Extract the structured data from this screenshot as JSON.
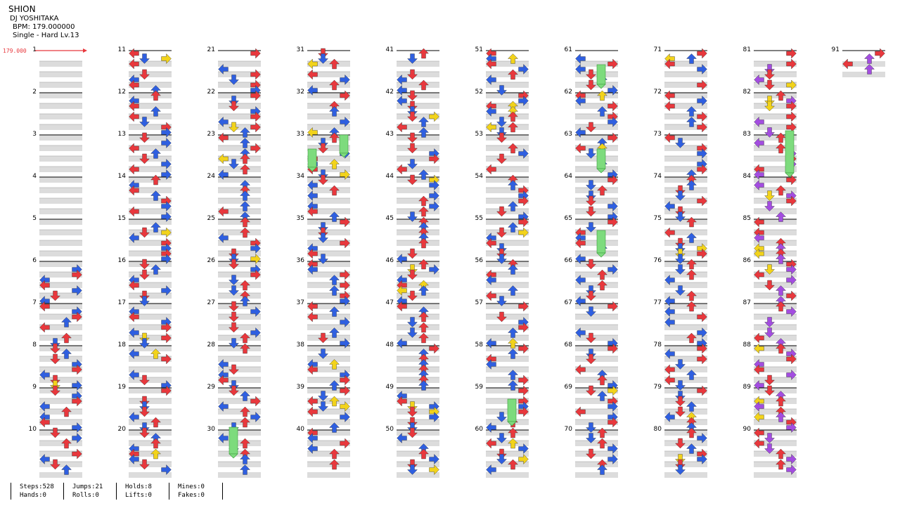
{
  "song": {
    "title": "SHION",
    "artist": "DJ YOSHITAKA",
    "bpm_label": "BPM: 179.000000",
    "difficulty": "Single - Hard  Lv.13"
  },
  "bpm_marker": "179.000",
  "colors": {
    "red": "#e8383d",
    "blue": "#2f5fe0",
    "yellow": "#f2d31b",
    "purple": "#a34de0",
    "hold_green": "#7ddb7d",
    "measure_band": "#dcdcdc"
  },
  "layout_info": {
    "total_measures": 91,
    "measures_per_column": 10,
    "column_count": 10
  },
  "column_sets": {
    "main_columns": [
      0,
      1,
      2,
      3,
      4,
      5,
      6,
      7,
      8,
      9
    ]
  },
  "measure_numbers": [
    "1",
    "2",
    "3",
    "4",
    "5",
    "6",
    "7",
    "8",
    "9",
    "10",
    "11",
    "12",
    "13",
    "14",
    "15",
    "16",
    "17",
    "18",
    "19",
    "20",
    "21",
    "22",
    "23",
    "24",
    "25",
    "26",
    "27",
    "28",
    "29",
    "30",
    "31",
    "32",
    "33",
    "34",
    "35",
    "36",
    "37",
    "38",
    "39",
    "40",
    "41",
    "42",
    "43",
    "44",
    "45",
    "46",
    "47",
    "48",
    "49",
    "50",
    "51",
    "52",
    "53",
    "54",
    "55",
    "56",
    "57",
    "58",
    "59",
    "60",
    "61",
    "62",
    "63",
    "64",
    "65",
    "66",
    "67",
    "68",
    "69",
    "70",
    "71",
    "72",
    "73",
    "74",
    "75",
    "76",
    "77",
    "78",
    "79",
    "80",
    "81",
    "82",
    "83",
    "84",
    "85",
    "86",
    "87",
    "88",
    "89",
    "90",
    "91"
  ],
  "stats": {
    "steps": "Steps:528",
    "hands": "Hands:0",
    "jumps": "Jumps:21",
    "rolls": "Rolls:0",
    "holds": "Holds:8",
    "lifts": "Lifts:0",
    "mines": "Mines:0",
    "fakes": "Fakes:0"
  },
  "arrow_icon_names": [
    "left-arrow-icon",
    "down-arrow-icon",
    "up-arrow-icon",
    "right-arrow-icon"
  ]
}
